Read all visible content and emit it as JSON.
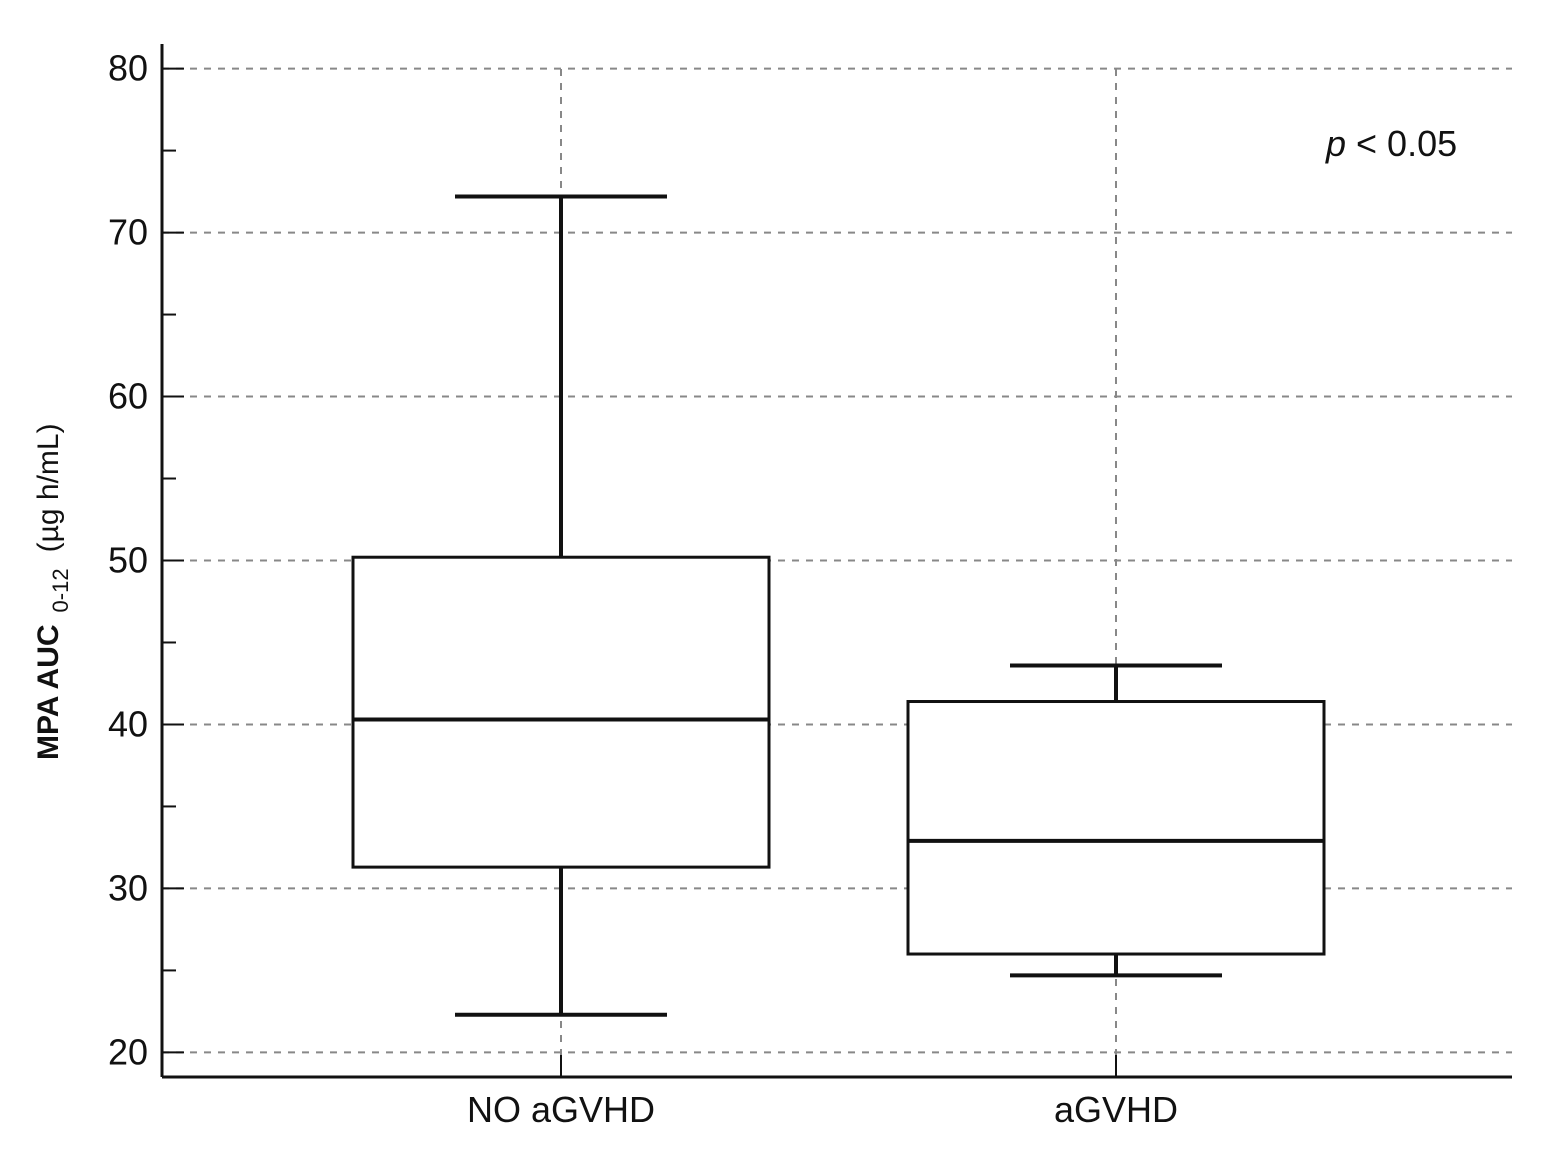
{
  "chart_data": {
    "type": "box",
    "categories": [
      "NO aGVHD",
      "aGVHD"
    ],
    "boxes": [
      {
        "category": "NO aGVHD",
        "whisker_low": 22.3,
        "q1": 31.3,
        "median": 40.3,
        "q3": 50.2,
        "whisker_high": 72.2
      },
      {
        "category": "aGVHD",
        "whisker_low": 24.7,
        "q1": 26.0,
        "median": 32.9,
        "q3": 41.4,
        "whisker_high": 43.6
      }
    ],
    "ylabel": {
      "main": "MPA AUC",
      "subscript": "0-12",
      "unit": "(µg h/mL)"
    },
    "ylim": [
      18.5,
      81.5
    ],
    "yticks": [
      20,
      30,
      40,
      50,
      60,
      70,
      80
    ],
    "yticks_labels": [
      "20",
      "30",
      "40",
      "50",
      "60",
      "70",
      "80"
    ],
    "annotation": {
      "p_symbol": "p",
      "text": " < 0.05"
    },
    "grid": true,
    "grid_style": "dashed"
  }
}
